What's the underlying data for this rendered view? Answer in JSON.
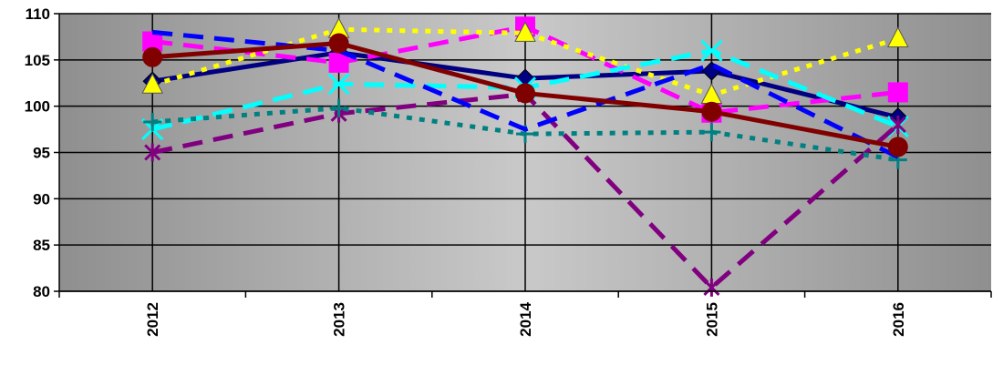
{
  "chart_data": {
    "type": "line",
    "title": "",
    "xlabel": "",
    "ylabel": "",
    "categories": [
      "2012",
      "2013",
      "2014",
      "2015",
      "2016"
    ],
    "ylim": [
      80,
      110
    ],
    "yticks": [
      80,
      85,
      90,
      95,
      100,
      105,
      110
    ],
    "grid": "horizontal and vertical gridlines",
    "legend": "none",
    "plot_background": "gradient grey",
    "series": [
      {
        "values": [
          102.7,
          105.8,
          103.0,
          103.8,
          98.8
        ],
        "color": "#000080",
        "dash": "solid",
        "marker": "diamond-icon"
      },
      {
        "values": [
          107.0,
          104.7,
          108.6,
          99.3,
          101.5
        ],
        "color": "#ff00ff",
        "dash": "dashed",
        "marker": "square-icon"
      },
      {
        "values": [
          102.3,
          108.3,
          107.9,
          101.2,
          107.3
        ],
        "color": "#ffff00",
        "dash": "dotted",
        "marker": "triangle-icon"
      },
      {
        "values": [
          97.5,
          102.4,
          102.0,
          106.0,
          97.8
        ],
        "color": "#00ffff",
        "dash": "dashed",
        "marker": "x-cross-icon"
      },
      {
        "values": [
          95.0,
          99.2,
          101.3,
          80.4,
          98.0
        ],
        "color": "#800080",
        "dash": "dashed",
        "marker": "star-icon"
      },
      {
        "values": [
          98.3,
          99.8,
          97.0,
          97.2,
          94.2
        ],
        "color": "#008080",
        "dash": "dotted",
        "marker": "plus-icon"
      },
      {
        "values": [
          108.0,
          106.0,
          97.5,
          104.5,
          94.5
        ],
        "color": "#0000ff",
        "dash": "dashed",
        "marker": "none"
      },
      {
        "values": [
          105.3,
          106.8,
          101.4,
          99.4,
          95.6
        ],
        "color": "#800000",
        "dash": "solid",
        "marker": "circle-icon"
      }
    ]
  }
}
